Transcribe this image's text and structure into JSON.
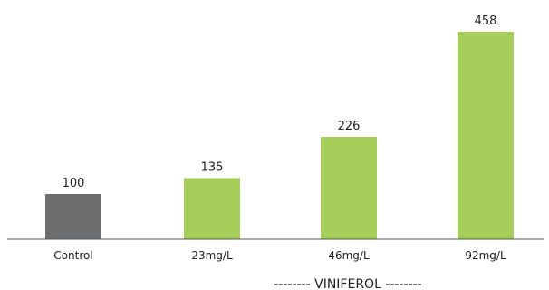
{
  "chart_data": {
    "type": "bar",
    "categories": [
      "Control",
      "23mg/L",
      "46mg/L",
      "92mg/L"
    ],
    "values": [
      100,
      135,
      226,
      458
    ],
    "data_labels": [
      "100",
      "135",
      "226",
      "458"
    ],
    "group_label": "-------- VINIFEROL --------",
    "title": "",
    "xlabel": "",
    "ylabel": "",
    "ylim": [
      0,
      500
    ],
    "grid": false,
    "legend": "none",
    "colors": {
      "control": "#6d6e70",
      "treatment": "#a6ce5a",
      "axis": "#555555"
    }
  }
}
